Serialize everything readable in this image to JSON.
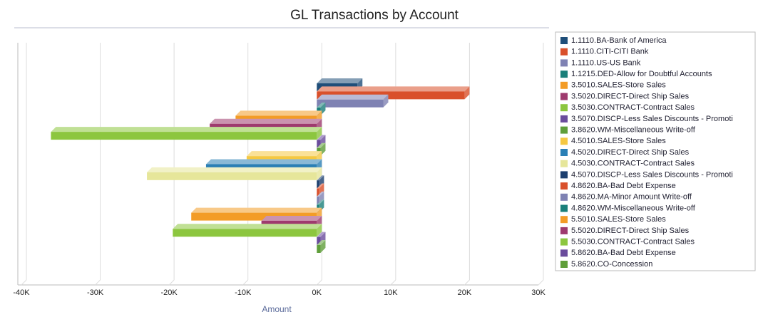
{
  "chart_data": {
    "type": "hbar",
    "title": "GL Transactions by Account",
    "x_label": "Amount",
    "categories": [
      "1.1110.BA-Bank of America",
      "1.1110.CITI-CITI Bank",
      "1.1110.US-US Bank",
      "1.1215.DED-Allow for Doubtful Accounts",
      "3.5010.SALES-Store Sales",
      "3.5020.DIRECT-Direct Ship Sales",
      "3.5030.CONTRACT-Contract Sales",
      "3.5070.DISCP-Less Sales Discounts - Promoti",
      "3.8620.WM-Miscellaneous Write-off",
      "4.5010.SALES-Store Sales",
      "4.5020.DIRECT-Direct Ship Sales",
      "4.5030.CONTRACT-Contract Sales",
      "4.5070.DISCP-Less Sales Discounts - Promoti",
      "4.8620.BA-Bad Debt Expense",
      "4.8620.MA-Minor Amount Write-off",
      "4.8620.WM-Miscellaneous Write-off",
      "5.5010.SALES-Store Sales",
      "5.5020.DIRECT-Direct Ship Sales",
      "5.5030.CONTRACT-Contract Sales",
      "5.8620.BA-Bad Debt Expense",
      "5.8620.CO-Concession"
    ],
    "values": [
      5500,
      20000,
      9000,
      500,
      -11000,
      -14500,
      -36000,
      500,
      500,
      -9500,
      -15000,
      -23000,
      300,
      300,
      300,
      300,
      -17000,
      -7500,
      -19500,
      500,
      500
    ],
    "colors": [
      "#1f4e79",
      "#d9502b",
      "#7f82b3",
      "#1a7f7a",
      "#f39c27",
      "#9e3a6e",
      "#8cc63f",
      "#6a4c9c",
      "#5f9e3a",
      "#f5c842",
      "#2a7fb5",
      "#e6e69a",
      "#1c3f6e",
      "#d9502b",
      "#7f82b3",
      "#1a7f7a",
      "#f39c27",
      "#9e3a6e",
      "#8cc63f",
      "#6a4c9c",
      "#5f9e3a"
    ],
    "xlim": [
      -40000,
      30000
    ],
    "xticks": [
      {
        "value": -40000,
        "label": "-40K"
      },
      {
        "value": -30000,
        "label": "-30K"
      },
      {
        "value": -20000,
        "label": "-20K"
      },
      {
        "value": -10000,
        "label": "-10K"
      },
      {
        "value": 0,
        "label": "0K"
      },
      {
        "value": 10000,
        "label": "10K"
      },
      {
        "value": 20000,
        "label": "20K"
      },
      {
        "value": 30000,
        "label": "30K"
      }
    ],
    "grid": true
  }
}
